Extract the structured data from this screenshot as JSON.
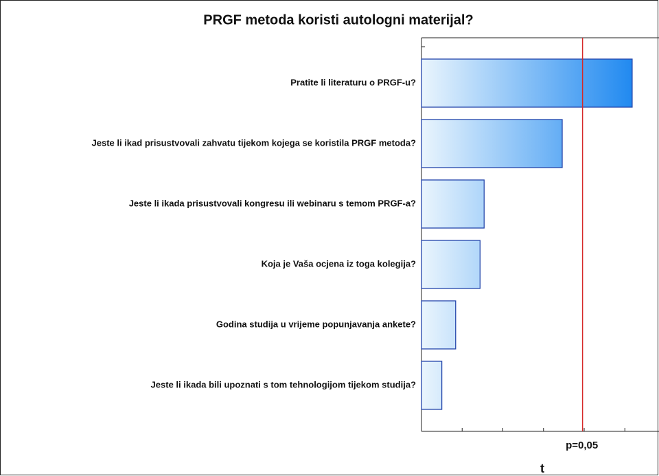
{
  "chart_data": {
    "type": "barh",
    "title": "PRGF metoda koristi autologni materijal?",
    "categories": [
      "Pratite li literaturu o PRGF-u?",
      "Jeste li ikad prisustvovali zahvatu tijekom kojega se koristila PRGF metoda?",
      "Jeste li ikada prisustvovali kongresu ili webinaru s temom PRGF-a?",
      "Koja je Vaša ocjena iz toga kolegija?",
      "Godina studija u vrijeme popunjavanja ankete?",
      "Jeste li ikada bili upoznati s tom tehnologijom tijekom studija?"
    ],
    "values": [
      2.59,
      1.73,
      0.77,
      0.72,
      0.42,
      0.25
    ],
    "color_start": "#eaf5fd",
    "color_end": "#1e88f0",
    "edge_color": "#2244aa",
    "xlim": [
      0,
      2.95
    ],
    "xticks": [
      0,
      0.5,
      1,
      1.5,
      2,
      2.5
    ],
    "xlabel": "t",
    "reference_line": {
      "value": 1.98,
      "label": "p=0,05",
      "color": "#d62828"
    }
  }
}
